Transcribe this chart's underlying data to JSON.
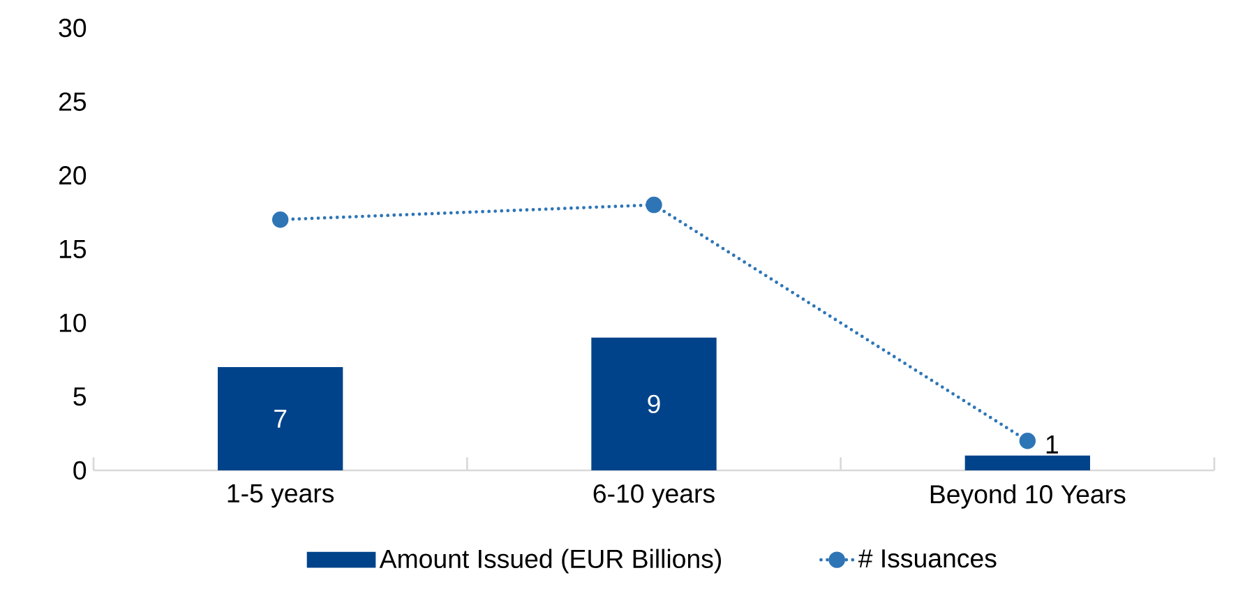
{
  "chart_data": {
    "type": "bar",
    "categories": [
      "1-5 years",
      "6-10 years",
      "Beyond 10 Years"
    ],
    "series": [
      {
        "name": "Amount Issued (EUR Billions)",
        "color": "#00438a",
        "values": [
          7,
          9,
          1
        ],
        "value_labels": [
          "7",
          "9",
          "1"
        ]
      },
      {
        "name": "# Issuances",
        "type": "line",
        "color": "#2e75b6",
        "values": [
          17,
          18,
          2
        ]
      }
    ],
    "ylim": [
      0,
      30
    ],
    "yticks": [
      0,
      5,
      10,
      15,
      20,
      25,
      30
    ],
    "grid": false,
    "legend": "bottom",
    "marker": "circle",
    "line_style": "dotted"
  }
}
